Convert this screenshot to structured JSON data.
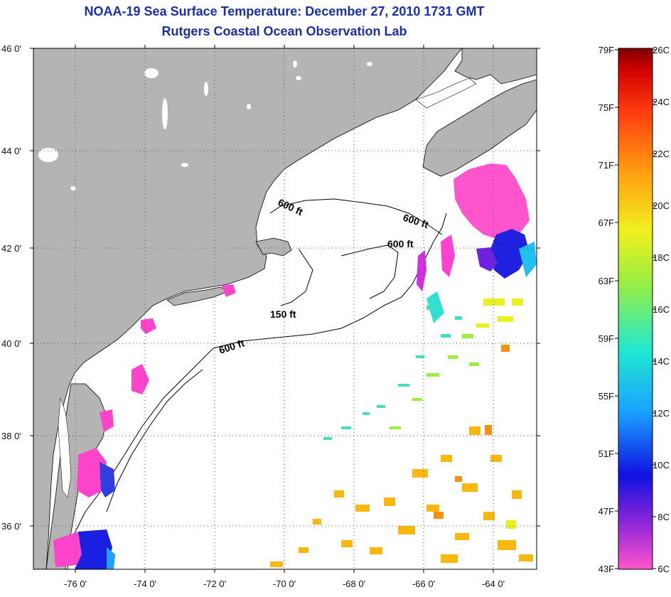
{
  "title": {
    "line1": "NOAA-19 Sea Surface Temperature:  December 27, 2010 1731 GMT",
    "line2": "Rutgers Coastal Ocean Observation Lab"
  },
  "map": {
    "lat_labels": [
      "46 0'",
      "44 0'",
      "42 0'",
      "40 0'",
      "38 0'",
      "36 0'"
    ],
    "lon_labels": [
      "-76 0'",
      "-74 0'",
      "-72 0'",
      "-70 0'",
      "-68 0'",
      "-66 0'",
      "-64 0'"
    ],
    "contour_labels": [
      "600 ft",
      "600 ft",
      "600 ft",
      "150 ft",
      "600 ft"
    ],
    "colors": {
      "land": "#b4b4b4",
      "water": "#ffffff",
      "grid": "#555555"
    }
  },
  "colorbar": {
    "fahrenheit": [
      "79F",
      "75F",
      "71F",
      "67F",
      "63F",
      "59F",
      "55F",
      "51F",
      "47F",
      "43F"
    ],
    "celsius": [
      "26C",
      "24C",
      "22C",
      "20C",
      "18C",
      "16C",
      "14C",
      "12C",
      "10C",
      "8C",
      "6C"
    ],
    "stops": [
      "#ff55cc",
      "#9a2ad8",
      "#1010e0",
      "#1aa0ff",
      "#20e8d0",
      "#9aee40",
      "#f0f020",
      "#ffa010",
      "#ff3a10",
      "#d00000",
      "#7a0000"
    ]
  }
}
